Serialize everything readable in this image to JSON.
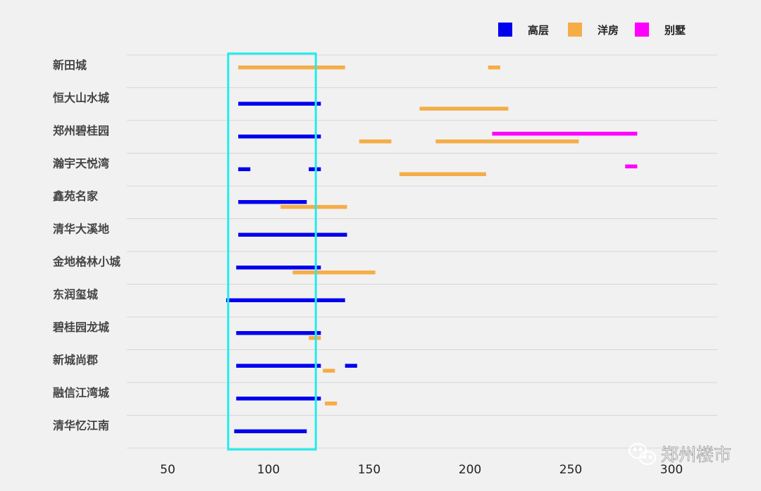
{
  "chart_data": {
    "type": "bar",
    "subtype": "range",
    "orientation": "horizontal",
    "title": "",
    "xlabel": "",
    "ylabel": "",
    "xlim": [
      30,
      325
    ],
    "xticks": [
      50,
      100,
      150,
      200,
      250,
      300
    ],
    "grid": true,
    "legend_position": "top-right",
    "categories": [
      "新田城",
      "恒大山水城",
      "郑州碧桂园",
      "瀚宇天悦湾",
      "鑫苑名家",
      "清华大溪地",
      "金地格林小城",
      "东润玺城",
      "碧桂园龙城",
      "新城尚郡",
      "融信江湾城",
      "清华忆江南"
    ],
    "series": [
      {
        "name": "高层",
        "color": "#0000ee",
        "ranges": [
          [],
          [
            [
              85,
              126
            ]
          ],
          [
            [
              85,
              126
            ]
          ],
          [
            [
              85,
              91
            ],
            [
              120,
              126
            ]
          ],
          [
            [
              85,
              119
            ]
          ],
          [
            [
              85,
              139
            ]
          ],
          [
            [
              84,
              126
            ]
          ],
          [
            [
              79,
              138
            ]
          ],
          [
            [
              84,
              126
            ]
          ],
          [
            [
              84,
              126
            ],
            [
              138,
              144
            ]
          ],
          [
            [
              84,
              126
            ]
          ],
          [
            [
              83,
              119
            ]
          ]
        ]
      },
      {
        "name": "洋房",
        "color": "#f5ad48",
        "ranges": [
          [
            [
              85,
              138
            ],
            [
              209,
              215
            ]
          ],
          [
            [
              175,
              219
            ]
          ],
          [
            [
              145,
              161
            ],
            [
              183,
              254
            ]
          ],
          [
            [
              165,
              208
            ]
          ],
          [
            [
              106,
              139
            ]
          ],
          [],
          [
            [
              112,
              153
            ]
          ],
          [],
          [
            [
              120,
              126
            ]
          ],
          [
            [
              127,
              133
            ]
          ],
          [
            [
              128,
              134
            ]
          ],
          []
        ]
      },
      {
        "name": "别墅",
        "color": "#ff00ff",
        "ranges": [
          [],
          [],
          [
            [
              211,
              283
            ]
          ],
          [
            [
              277,
              283
            ]
          ],
          [],
          [],
          [],
          [],
          [],
          [],
          [],
          []
        ]
      }
    ],
    "highlight_box": {
      "x_range": [
        80,
        123.5
      ],
      "color": "#22ecee"
    }
  },
  "watermark": {
    "text": "郑州楼市",
    "icon": "wechat-icon"
  }
}
